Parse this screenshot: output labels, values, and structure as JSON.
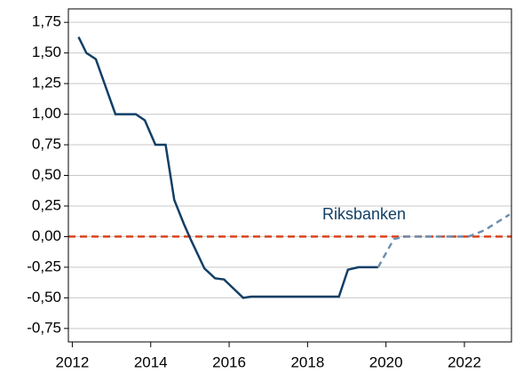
{
  "chart_data": {
    "type": "line",
    "series": [
      {
        "name": "Riksbanken",
        "color": "#123f66",
        "style": "solid",
        "x": [
          2012.16,
          2012.36,
          2012.6,
          2013.1,
          2013.62,
          2013.85,
          2014.12,
          2014.38,
          2014.6,
          2014.85,
          2015.03,
          2015.37,
          2015.64,
          2015.87,
          2016.36,
          2016.56,
          2018.8,
          2019.03,
          2019.3,
          2019.8
        ],
        "values": [
          1.63,
          1.5,
          1.45,
          1.0,
          1.0,
          0.95,
          0.75,
          0.75,
          0.3,
          0.1,
          -0.03,
          -0.26,
          -0.34,
          -0.35,
          -0.5,
          -0.49,
          -0.49,
          -0.27,
          -0.25,
          -0.25
        ]
      },
      {
        "color": "#6f8fb0",
        "style": "dashed",
        "x": [
          2019.8,
          2020.2,
          2020.5,
          2022.1,
          2022.5,
          2023.15
        ],
        "values": [
          -0.25,
          -0.02,
          0.0,
          0.0,
          0.05,
          0.18
        ]
      }
    ],
    "hline": {
      "value": 0,
      "color": "#d9441c"
    },
    "xlim": [
      2011.9,
      2023.2
    ],
    "xticks": [
      2012,
      2014,
      2016,
      2018,
      2020,
      2022
    ],
    "ylim": [
      -0.86,
      1.86
    ],
    "yticks": [
      {
        "value": -0.75,
        "label": "-0,75"
      },
      {
        "value": -0.5,
        "label": "-0,50"
      },
      {
        "value": -0.25,
        "label": "-0,25"
      },
      {
        "value": 0,
        "label": "0,00"
      },
      {
        "value": 0.25,
        "label": "0,25"
      },
      {
        "value": 0.5,
        "label": "0,50"
      },
      {
        "value": 0.75,
        "label": "0,75"
      },
      {
        "value": 1,
        "label": "1,00"
      },
      {
        "value": 1.25,
        "label": "1,25"
      },
      {
        "value": 1.5,
        "label": "1,50"
      },
      {
        "value": 1.75,
        "label": "1,75"
      }
    ],
    "grid": true
  }
}
